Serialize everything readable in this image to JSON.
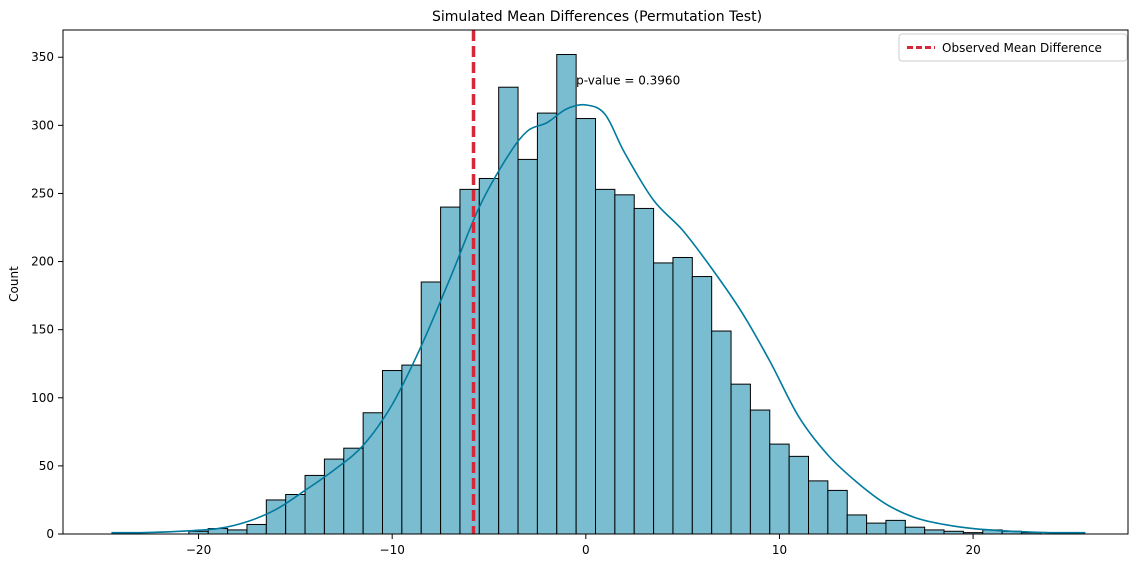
{
  "chart_data": {
    "type": "histogram",
    "title": "Simulated Mean Differences (Permutation Test)",
    "xlabel": "",
    "ylabel": "Count",
    "xlim": [
      -27,
      28
    ],
    "ylim": [
      0,
      370
    ],
    "x_ticks": [
      -20,
      -10,
      0,
      10,
      20
    ],
    "x_tick_labels": [
      "−20",
      "−10",
      "0",
      "10",
      "20"
    ],
    "y_ticks": [
      0,
      50,
      100,
      150,
      200,
      250,
      300,
      350
    ],
    "y_tick_labels": [
      "0",
      "50",
      "100",
      "150",
      "200",
      "250",
      "300",
      "350"
    ],
    "grid": false,
    "legend_position": "top-right",
    "bin_edges": [
      -20.5,
      -19.5,
      -18.5,
      -17.5,
      -16.5,
      -15.5,
      -14.5,
      -13.5,
      -12.5,
      -11.5,
      -10.5,
      -9.5,
      -8.5,
      -7.5,
      -6.5,
      -5.5,
      -4.5,
      -3.5,
      -2.5,
      -1.5,
      -0.5,
      0.5,
      1.5,
      2.5,
      3.5,
      4.5,
      5.5,
      6.5,
      7.5,
      8.5,
      9.5,
      10.5,
      11.5,
      12.5,
      13.5,
      14.5,
      15.5,
      16.5,
      17.5,
      18.5,
      19.5,
      20.5,
      21.5,
      22.5,
      23.5,
      24.5
    ],
    "counts": [
      2,
      4,
      3,
      7,
      25,
      29,
      43,
      55,
      63,
      89,
      120,
      124,
      185,
      240,
      253,
      261,
      328,
      275,
      309,
      352,
      305,
      253,
      249,
      239,
      199,
      203,
      189,
      149,
      110,
      91,
      66,
      57,
      39,
      32,
      14,
      8,
      10,
      5,
      3,
      2,
      1,
      3,
      2,
      1,
      0
    ],
    "kde": {
      "x": [
        -24.5,
        -23,
        -21,
        -19,
        -17.5,
        -16,
        -14.5,
        -13,
        -11.5,
        -10,
        -8.5,
        -7,
        -5.5,
        -4,
        -3,
        -2,
        -1,
        0,
        1,
        2,
        3.5,
        5,
        6.5,
        8,
        9.5,
        11,
        12.5,
        14,
        15.5,
        17,
        18.5,
        20,
        22,
        24,
        25.8
      ],
      "y": [
        1,
        1,
        2,
        4,
        9,
        18,
        32,
        47,
        65,
        95,
        138,
        188,
        240,
        278,
        296,
        302,
        312,
        315,
        308,
        280,
        245,
        223,
        195,
        164,
        127,
        86,
        58,
        38,
        22,
        12,
        7,
        4,
        2,
        1,
        1
      ]
    },
    "observed_mean_difference": -5.8,
    "annotation": "p-value = 0.3960",
    "annotation_position": [
      -0.5,
      333
    ],
    "series": [
      {
        "name": "Observed Mean Difference",
        "kind": "vline"
      }
    ],
    "colors": {
      "bars": "#7bbdd0",
      "bar_edge": "#000000",
      "kde": "#007a9e",
      "vline": "#d62838"
    }
  }
}
